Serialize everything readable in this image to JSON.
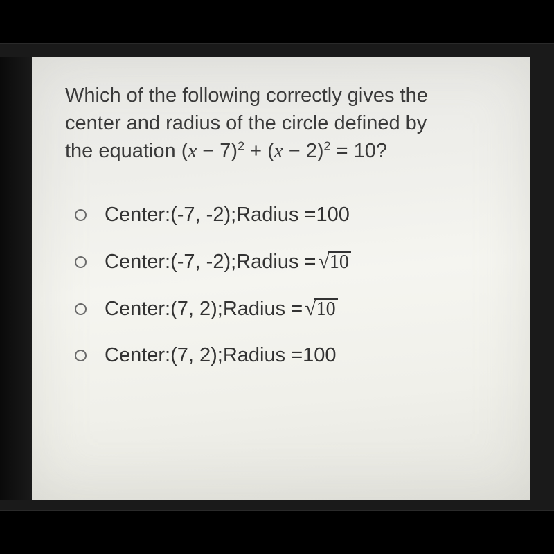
{
  "question": {
    "line1": "Which of the following correctly gives the",
    "line2": "center and radius of the circle defined by",
    "line3_prefix": "the equation (",
    "eq_var1": "x",
    "eq_mid1": " − 7)",
    "eq_sup1": "2",
    "eq_plus": " + (",
    "eq_var2": "x",
    "eq_mid2": " − 2)",
    "eq_sup2": "2",
    "eq_eq": " = 10?"
  },
  "options": [
    {
      "center_label": "Center: ",
      "center": "(-7, -2)",
      "sep": "; ",
      "radius_label": "Radius = ",
      "radius_value": "100",
      "has_sqrt": false
    },
    {
      "center_label": "Center: ",
      "center": "(-7, -2)",
      "sep": "; ",
      "radius_label": "Radius = ",
      "radius_value": "10",
      "has_sqrt": true
    },
    {
      "center_label": "Center: ",
      "center": "(7, 2)",
      "sep": "; ",
      "radius_label": "Radius =  ",
      "radius_value": "10",
      "has_sqrt": true
    },
    {
      "center_label": "Center: ",
      "center": "(7, 2)",
      "sep": "; ",
      "radius_label": "Radius = ",
      "radius_value": "100",
      "has_sqrt": false
    }
  ],
  "style": {
    "background": "#000000",
    "panel_bg": "#f0f0ea",
    "text_color": "#3a3a3a",
    "radio_border": "#6a6a6a",
    "question_fontsize": 29,
    "option_fontsize": 29
  }
}
